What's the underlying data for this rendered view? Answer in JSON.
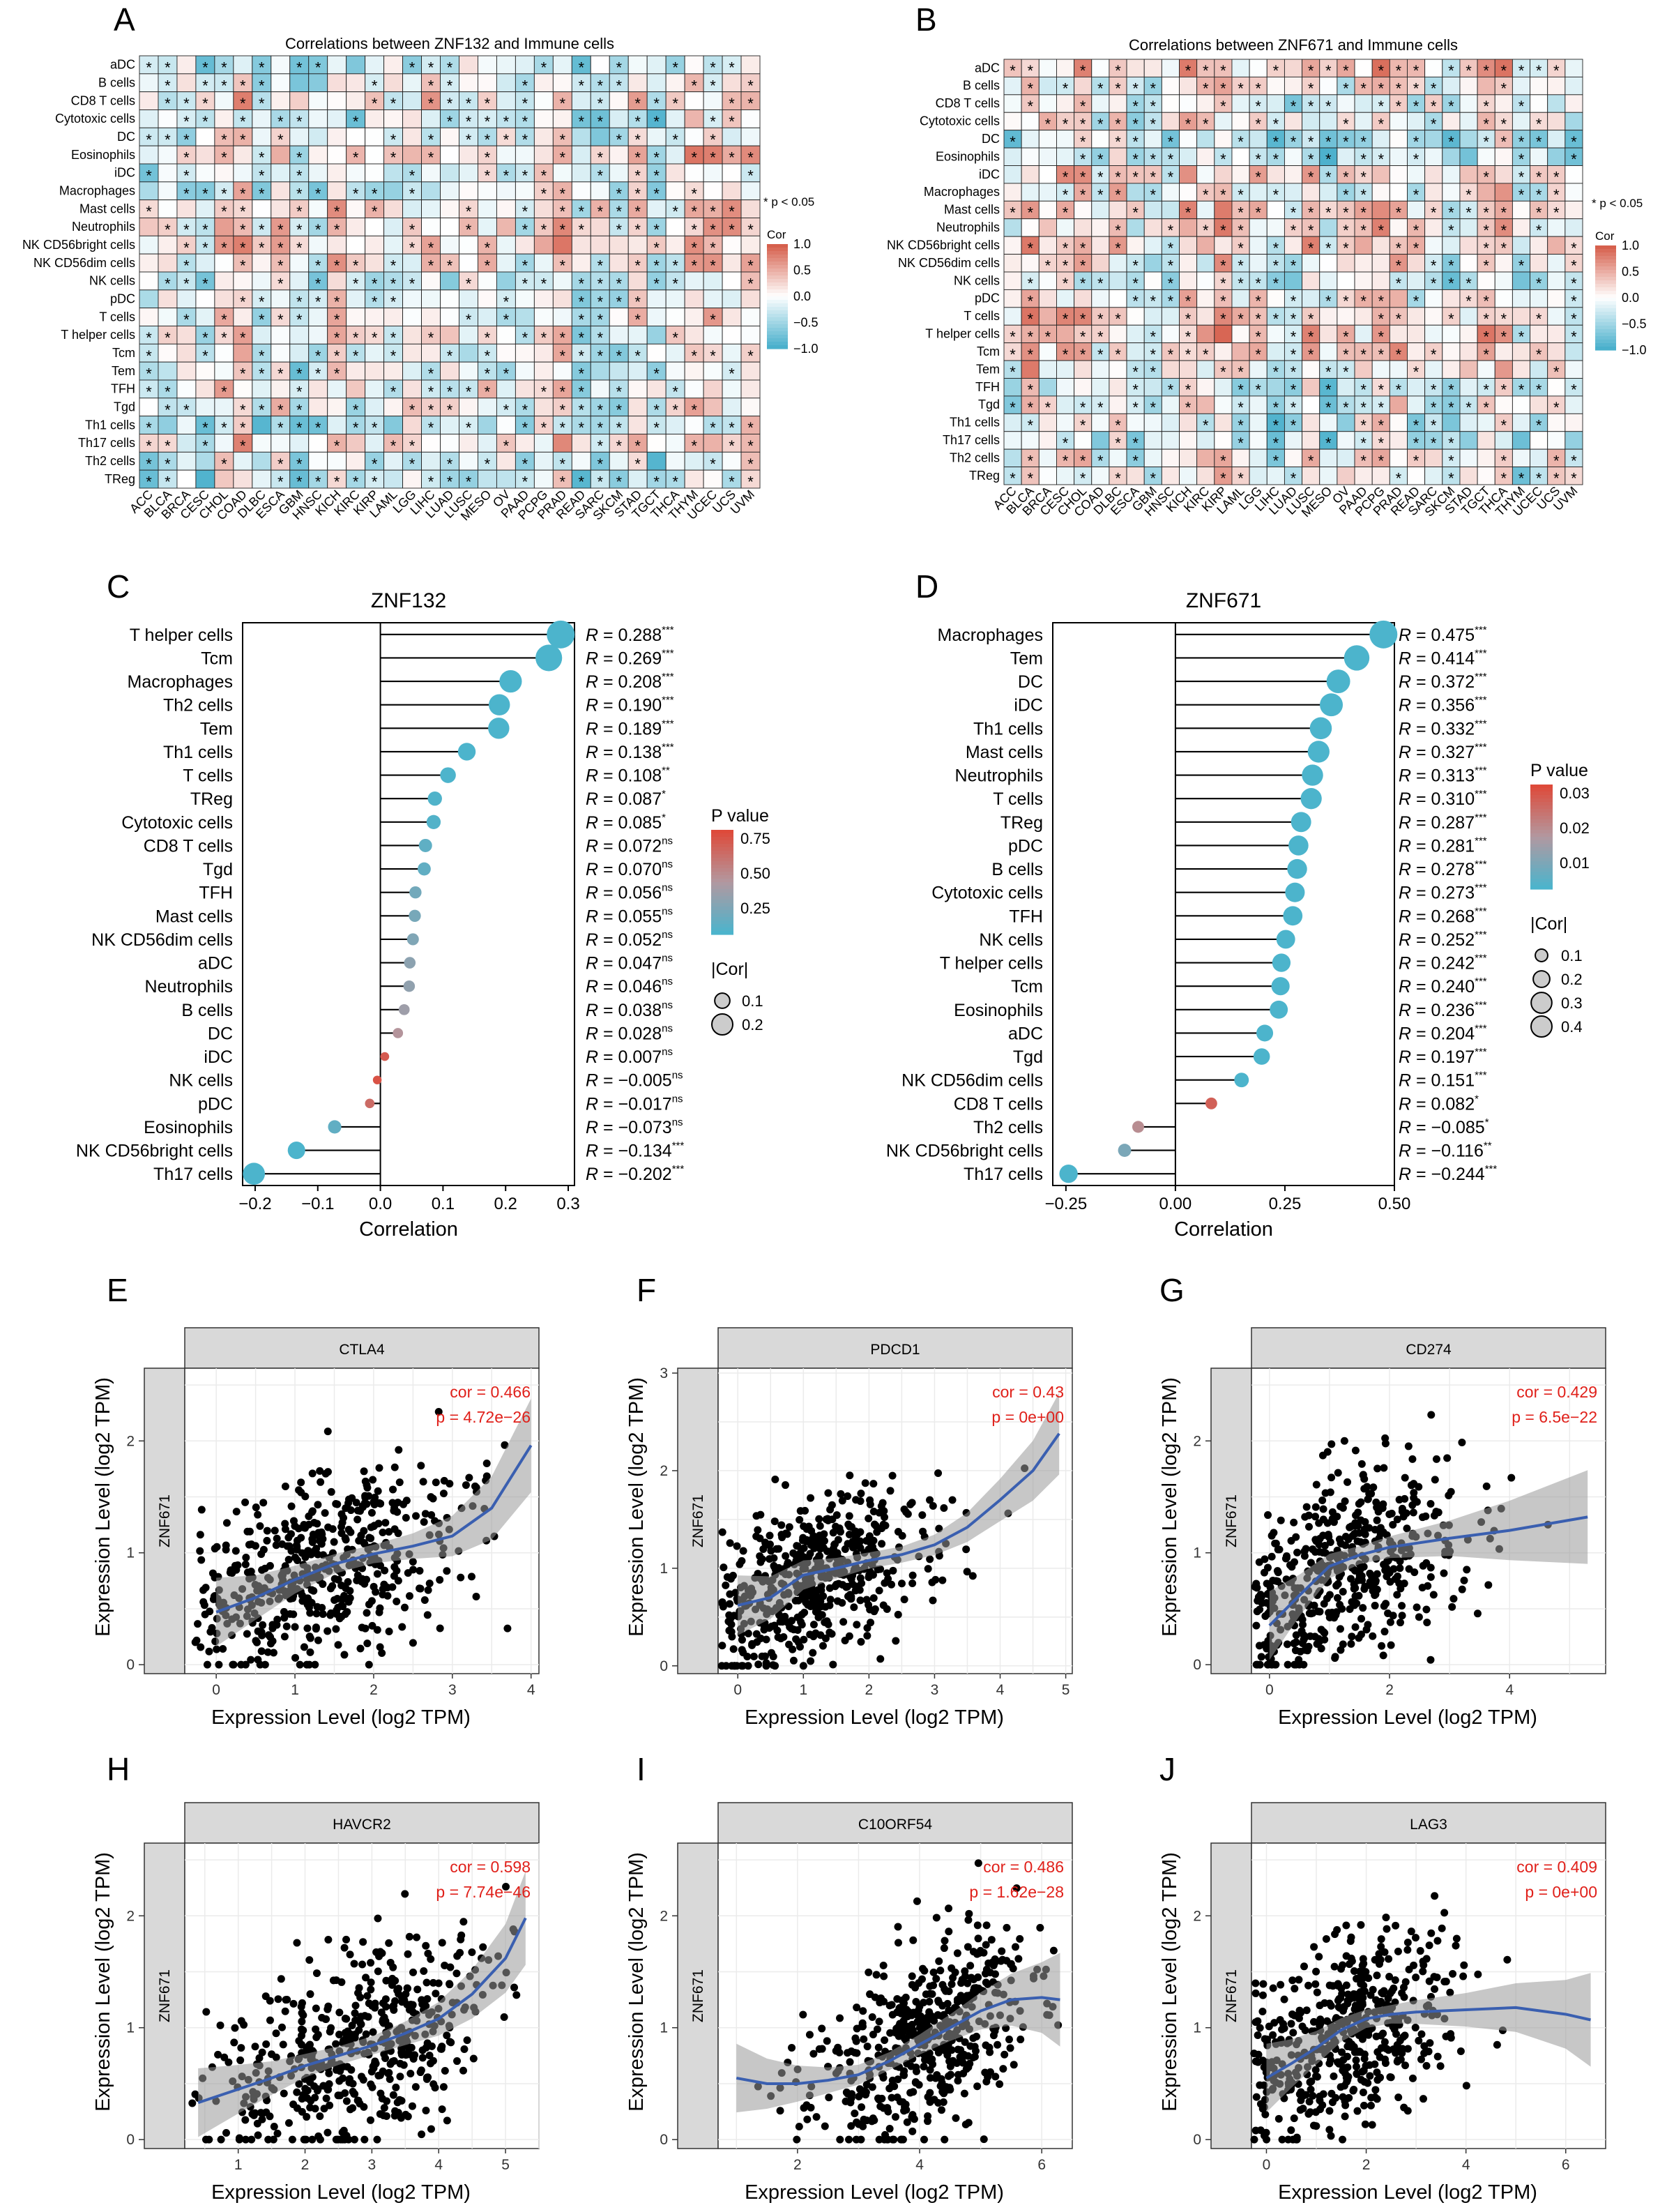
{
  "panels": {
    "A": "A",
    "B": "B",
    "C": "C",
    "D": "D",
    "E": "E",
    "F": "F",
    "G": "G",
    "H": "H",
    "I": "I",
    "J": "J"
  },
  "chart_data": [
    {
      "id": "A",
      "type": "heatmap",
      "title": "Correlations between ZNF132 and Immune cells",
      "rows": [
        "aDC",
        "B cells",
        "CD8 T cells",
        "Cytotoxic cells",
        "DC",
        "Eosinophils",
        "iDC",
        "Macrophages",
        "Mast cells",
        "Neutrophils",
        "NK CD56bright cells",
        "NK CD56dim cells",
        "NK cells",
        "pDC",
        "T cells",
        "T helper cells",
        "Tcm",
        "Tem",
        "TFH",
        "Tgd",
        "Th1 cells",
        "Th17 cells",
        "Th2 cells",
        "TReg"
      ],
      "columns": [
        "ACC",
        "BLCA",
        "BRCA",
        "CESC",
        "CHOL",
        "COAD",
        "DLBC",
        "ESCA",
        "GBM",
        "HNSC",
        "KICH",
        "KIRC",
        "KIRP",
        "LAML",
        "LGG",
        "LIHC",
        "LUAD",
        "LUSC",
        "MESO",
        "OV",
        "PAAD",
        "PCPG",
        "PRAD",
        "READ",
        "SARC",
        "SKCM",
        "STAD",
        "TGCT",
        "THCA",
        "THYM",
        "UCEC",
        "UCS",
        "UVM"
      ],
      "cell_values_note": "approximate correlation values per cell in [-1,1]; * marks p < 0.05",
      "legend_title": "Cor",
      "legend_ticks": [
        "1.0",
        "0.5",
        "0.0",
        "−0.5",
        "−1.0"
      ],
      "significance_note": "* p < 0.05",
      "seed": 11
    },
    {
      "id": "B",
      "type": "heatmap",
      "title": "Correlations between ZNF671 and Immune cells",
      "rows": [
        "aDC",
        "B cells",
        "CD8 T cells",
        "Cytotoxic cells",
        "DC",
        "Eosinophils",
        "iDC",
        "Macrophages",
        "Mast cells",
        "Neutrophils",
        "NK CD56bright cells",
        "NK CD56dim cells",
        "NK cells",
        "pDC",
        "T cells",
        "T helper cells",
        "Tcm",
        "Tem",
        "TFH",
        "Tgd",
        "Th1 cells",
        "Th17 cells",
        "Th2 cells",
        "TReg"
      ],
      "columns": [
        "ACC",
        "BLCA",
        "BRCA",
        "CESC",
        "CHOL",
        "COAD",
        "DLBC",
        "ESCA",
        "GBM",
        "HNSC",
        "KICH",
        "KIRC",
        "KIRP",
        "LAML",
        "LGG",
        "LIHC",
        "LUAD",
        "LUSC",
        "MESO",
        "OV",
        "PAAD",
        "PCPG",
        "PRAD",
        "READ",
        "SARC",
        "SKCM",
        "STAD",
        "TGCT",
        "THCA",
        "THYM",
        "UCEC",
        "UCS",
        "UVM"
      ],
      "cell_values_note": "approximate correlation values per cell in [-1,1]; * marks p < 0.05",
      "legend_title": "Cor",
      "legend_ticks": [
        "1.0",
        "0.5",
        "0.0",
        "−0.5",
        "−1.0"
      ],
      "significance_note": "* p < 0.05",
      "seed": 29
    },
    {
      "id": "C",
      "type": "lollipop",
      "title": "ZNF132",
      "xlabel": "Correlation",
      "xlim": [
        -0.22,
        0.31
      ],
      "xticks": [
        -0.2,
        -0.1,
        0.0,
        0.1,
        0.2,
        0.3
      ],
      "xtick_labels": [
        "−0.2",
        "−0.1",
        "0.0",
        "0.1",
        "0.2",
        "0.3"
      ],
      "legend_pvalue_title": "P value",
      "legend_pvalue_ticks": [
        "0.75",
        "0.50",
        "0.25"
      ],
      "pvalue_range": [
        0.0,
        0.95
      ],
      "legend_size_title": "|Cor|",
      "legend_size_ticks": [
        "0.1",
        "0.2"
      ],
      "size_legend_values": [
        0.1,
        0.2
      ],
      "categories": [
        "T helper cells",
        "Tcm",
        "Macrophages",
        "Th2 cells",
        "Tem",
        "Th1 cells",
        "T cells",
        "TReg",
        "Cytotoxic cells",
        "CD8 T cells",
        "Tgd",
        "TFH",
        "Mast cells",
        "NK CD56dim cells",
        "aDC",
        "Neutrophils",
        "B cells",
        "DC",
        "iDC",
        "NK cells",
        "pDC",
        "Eosinophils",
        "NK CD56bright cells",
        "Th17 cells"
      ],
      "values": [
        0.288,
        0.269,
        0.208,
        0.19,
        0.189,
        0.138,
        0.108,
        0.087,
        0.085,
        0.072,
        0.07,
        0.056,
        0.055,
        0.052,
        0.047,
        0.046,
        0.038,
        0.028,
        0.007,
        -0.005,
        -0.017,
        -0.073,
        -0.134,
        -0.202
      ],
      "r_labels": [
        "0.288",
        "0.269",
        "0.208",
        "0.190",
        "0.189",
        "0.138",
        "0.108",
        "0.087",
        "0.085",
        "0.072",
        "0.070",
        "0.056",
        "0.055",
        "0.052",
        "0.047",
        "0.046",
        "0.038",
        "0.028",
        "0.007",
        "−0.005",
        "−0.017",
        "−0.073",
        "−0.134",
        "−0.202"
      ],
      "significance": [
        "***",
        "***",
        "***",
        "***",
        "***",
        "***",
        "**",
        "*",
        "*",
        "ns",
        "ns",
        "ns",
        "ns",
        "ns",
        "ns",
        "ns",
        "ns",
        "ns",
        "ns",
        "ns",
        "ns",
        "ns",
        "***",
        "***"
      ],
      "pvalues": [
        0.0,
        0.0,
        0.0,
        0.0,
        0.0,
        0.0,
        0.005,
        0.02,
        0.03,
        0.09,
        0.1,
        0.18,
        0.2,
        0.24,
        0.3,
        0.32,
        0.38,
        0.5,
        0.85,
        0.9,
        0.75,
        0.1,
        0.0,
        0.0
      ]
    },
    {
      "id": "D",
      "type": "lollipop",
      "title": "ZNF671",
      "xlabel": "Correlation",
      "xlim": [
        -0.28,
        0.5
      ],
      "xticks": [
        -0.25,
        0.0,
        0.25,
        0.5
      ],
      "xtick_labels": [
        "−0.25",
        "0.00",
        "0.25",
        "0.50"
      ],
      "legend_pvalue_title": "P value",
      "legend_pvalue_ticks": [
        "0.03",
        "0.02",
        "0.01"
      ],
      "pvalue_range": [
        0.0,
        0.035
      ],
      "legend_size_title": "|Cor|",
      "legend_size_ticks": [
        "0.1",
        "0.2",
        "0.3",
        "0.4"
      ],
      "size_legend_values": [
        0.1,
        0.2,
        0.3,
        0.4
      ],
      "categories": [
        "Macrophages",
        "Tem",
        "DC",
        "iDC",
        "Th1 cells",
        "Mast cells",
        "Neutrophils",
        "T cells",
        "TReg",
        "pDC",
        "B cells",
        "Cytotoxic cells",
        "TFH",
        "NK cells",
        "T helper cells",
        "Tcm",
        "Eosinophils",
        "aDC",
        "Tgd",
        "NK CD56dim cells",
        "CD8 T cells",
        "Th2 cells",
        "NK CD56bright cells",
        "Th17 cells"
      ],
      "values": [
        0.475,
        0.414,
        0.372,
        0.356,
        0.332,
        0.327,
        0.313,
        0.31,
        0.287,
        0.281,
        0.278,
        0.273,
        0.268,
        0.252,
        0.242,
        0.24,
        0.236,
        0.204,
        0.197,
        0.151,
        0.082,
        -0.085,
        -0.116,
        -0.244
      ],
      "r_labels": [
        "0.475",
        "0.414",
        "0.372",
        "0.356",
        "0.332",
        "0.327",
        "0.313",
        "0.310",
        "0.287",
        "0.281",
        "0.278",
        "0.273",
        "0.268",
        "0.252",
        "0.242",
        "0.240",
        "0.236",
        "0.204",
        "0.197",
        "0.151",
        "0.082",
        "−0.085",
        "−0.116",
        "−0.244"
      ],
      "significance": [
        "***",
        "***",
        "***",
        "***",
        "***",
        "***",
        "***",
        "***",
        "***",
        "***",
        "***",
        "***",
        "***",
        "***",
        "***",
        "***",
        "***",
        "***",
        "***",
        "***",
        "*",
        "*",
        "**",
        "***"
      ],
      "pvalues": [
        0,
        0,
        0,
        0,
        0,
        0,
        0,
        0,
        0,
        0,
        0,
        0,
        0,
        0,
        0,
        0,
        0,
        0,
        0,
        0.0,
        0.03,
        0.02,
        0.008,
        0.0
      ]
    },
    {
      "id": "E",
      "type": "scatter",
      "gene": "CTLA4",
      "ylabel_gene": "ZNF671",
      "xlabel": "Expression Level (log2 TPM)",
      "ylabel": "Expression Level (log2 TPM)",
      "cor_text": "cor = 0.466",
      "p_text": "p = 4.72e−26",
      "xlim": [
        -0.4,
        4.1
      ],
      "ylim": [
        -0.08,
        2.65
      ],
      "xticks": [
        0,
        1,
        2,
        3,
        4
      ],
      "xtick_labels": [
        "0",
        "1",
        "2",
        "3",
        "4"
      ],
      "yticks": [
        0,
        1,
        2
      ],
      "ytick_labels": [
        "0",
        "1",
        "2"
      ],
      "fit_curve": [
        [
          0,
          0.47
        ],
        [
          0.5,
          0.6
        ],
        [
          1,
          0.76
        ],
        [
          1.5,
          0.9
        ],
        [
          2,
          0.99
        ],
        [
          2.5,
          1.06
        ],
        [
          3,
          1.15
        ],
        [
          3.5,
          1.4
        ],
        [
          4,
          1.96
        ]
      ],
      "n_points": 520,
      "x_center": 1.3,
      "x_spread": 0.9,
      "x_max": 3.8,
      "slope": 0.28,
      "y_base": 0.5,
      "seed": 5
    },
    {
      "id": "F",
      "type": "scatter",
      "gene": "PDCD1",
      "ylabel_gene": "ZNF671",
      "xlabel": "Expression Level (log2 TPM)",
      "ylabel": "Expression Level (log2 TPM)",
      "cor_text": "cor = 0.43",
      "p_text": "p = 0e+00",
      "xlim": [
        -0.3,
        5.1
      ],
      "ylim": [
        -0.08,
        3.05
      ],
      "xticks": [
        0,
        1,
        2,
        3,
        4,
        5
      ],
      "xtick_labels": [
        "0",
        "1",
        "2",
        "3",
        "4",
        "5"
      ],
      "yticks": [
        0,
        1,
        2,
        3
      ],
      "ytick_labels": [
        "0",
        "1",
        "2",
        "3"
      ],
      "fit_curve": [
        [
          0,
          0.62
        ],
        [
          0.5,
          0.7
        ],
        [
          1,
          0.93
        ],
        [
          1.5,
          1.0
        ],
        [
          2,
          1.08
        ],
        [
          2.5,
          1.14
        ],
        [
          3,
          1.24
        ],
        [
          3.5,
          1.42
        ],
        [
          4,
          1.7
        ],
        [
          4.5,
          2.0
        ],
        [
          4.9,
          2.38
        ]
      ],
      "n_points": 520,
      "x_center": 1.2,
      "x_spread": 0.9,
      "x_max": 4.5,
      "slope": 0.25,
      "y_base": 0.6,
      "seed": 9
    },
    {
      "id": "G",
      "type": "scatter",
      "gene": "CD274",
      "ylabel_gene": "ZNF671",
      "xlabel": "Expression Level (log2 TPM)",
      "ylabel": "Expression Level (log2 TPM)",
      "cor_text": "cor = 0.429",
      "p_text": "p = 6.5e−22",
      "xlim": [
        -0.3,
        5.6
      ],
      "ylim": [
        -0.08,
        2.65
      ],
      "xticks": [
        0,
        2,
        4
      ],
      "xtick_labels": [
        "0",
        "2",
        "4"
      ],
      "yticks": [
        0,
        1,
        2
      ],
      "ytick_labels": [
        "0",
        "1",
        "2"
      ],
      "fit_curve": [
        [
          0,
          0.35
        ],
        [
          0.5,
          0.62
        ],
        [
          1,
          0.88
        ],
        [
          1.5,
          0.98
        ],
        [
          2,
          1.05
        ],
        [
          3,
          1.13
        ],
        [
          4,
          1.2
        ],
        [
          5.3,
          1.32
        ]
      ],
      "n_points": 500,
      "x_center": 1.3,
      "x_spread": 1.0,
      "x_max": 5.2,
      "slope": 0.22,
      "y_base": 0.6,
      "seed": 13
    },
    {
      "id": "H",
      "type": "scatter",
      "gene": "HAVCR2",
      "ylabel_gene": "ZNF671",
      "xlabel": "Expression Level (log2 TPM)",
      "ylabel": "Expression Level (log2 TPM)",
      "cor_text": "cor = 0.598",
      "p_text": "p = 7.74e−46",
      "xlim": [
        0.2,
        5.5
      ],
      "ylim": [
        -0.08,
        2.65
      ],
      "xticks": [
        1,
        2,
        3,
        4,
        5
      ],
      "xtick_labels": [
        "1",
        "2",
        "3",
        "4",
        "5"
      ],
      "yticks": [
        0,
        1,
        2
      ],
      "ytick_labels": [
        "0",
        "1",
        "2"
      ],
      "fit_curve": [
        [
          0.4,
          0.33
        ],
        [
          1,
          0.45
        ],
        [
          1.5,
          0.55
        ],
        [
          2,
          0.66
        ],
        [
          2.5,
          0.75
        ],
        [
          3,
          0.84
        ],
        [
          3.5,
          0.95
        ],
        [
          4,
          1.08
        ],
        [
          4.5,
          1.3
        ],
        [
          5,
          1.62
        ],
        [
          5.3,
          1.98
        ]
      ],
      "n_points": 520,
      "x_center": 2.8,
      "x_spread": 1.1,
      "x_max": 5.2,
      "slope": 0.3,
      "y_base": 0.3,
      "seed": 17
    },
    {
      "id": "I",
      "type": "scatter",
      "gene": "C10ORF54",
      "ylabel_gene": "ZNF671",
      "xlabel": "Expression Level (log2 TPM)",
      "ylabel": "Expression Level (log2 TPM)",
      "cor_text": "cor = 0.486",
      "p_text": "p = 1.62e−28",
      "xlim": [
        0.7,
        6.5
      ],
      "ylim": [
        -0.08,
        2.65
      ],
      "xticks": [
        2,
        4,
        6
      ],
      "xtick_labels": [
        "2",
        "4",
        "6"
      ],
      "yticks": [
        0,
        1,
        2
      ],
      "ytick_labels": [
        "0",
        "1",
        "2"
      ],
      "fit_curve": [
        [
          1,
          0.55
        ],
        [
          1.5,
          0.5
        ],
        [
          2,
          0.5
        ],
        [
          2.5,
          0.53
        ],
        [
          3,
          0.58
        ],
        [
          3.5,
          0.7
        ],
        [
          4,
          0.85
        ],
        [
          4.5,
          1.0
        ],
        [
          5,
          1.15
        ],
        [
          5.5,
          1.25
        ],
        [
          6,
          1.27
        ],
        [
          6.3,
          1.25
        ]
      ],
      "n_points": 520,
      "x_center": 4.0,
      "x_spread": 0.9,
      "x_max": 6.3,
      "slope": 0.32,
      "y_base": -0.6,
      "seed": 23
    },
    {
      "id": "J",
      "type": "scatter",
      "gene": "LAG3",
      "ylabel_gene": "ZNF671",
      "xlabel": "Expression Level (log2 TPM)",
      "ylabel": "Expression Level (log2 TPM)",
      "cor_text": "cor = 0.409",
      "p_text": "p = 0e+00",
      "xlim": [
        -0.3,
        6.8
      ],
      "ylim": [
        -0.08,
        2.65
      ],
      "xticks": [
        0,
        2,
        4,
        6
      ],
      "xtick_labels": [
        "0",
        "2",
        "4",
        "6"
      ],
      "yticks": [
        0,
        1,
        2
      ],
      "ytick_labels": [
        "0",
        "1",
        "2"
      ],
      "fit_curve": [
        [
          0,
          0.55
        ],
        [
          0.5,
          0.68
        ],
        [
          1,
          0.82
        ],
        [
          1.5,
          0.98
        ],
        [
          2,
          1.08
        ],
        [
          2.5,
          1.12
        ],
        [
          3,
          1.14
        ],
        [
          4,
          1.16
        ],
        [
          5,
          1.18
        ],
        [
          6,
          1.12
        ],
        [
          6.5,
          1.07
        ]
      ],
      "n_points": 500,
      "x_center": 1.6,
      "x_spread": 1.1,
      "x_max": 6.3,
      "slope": 0.2,
      "y_base": 0.6,
      "seed": 31
    }
  ]
}
